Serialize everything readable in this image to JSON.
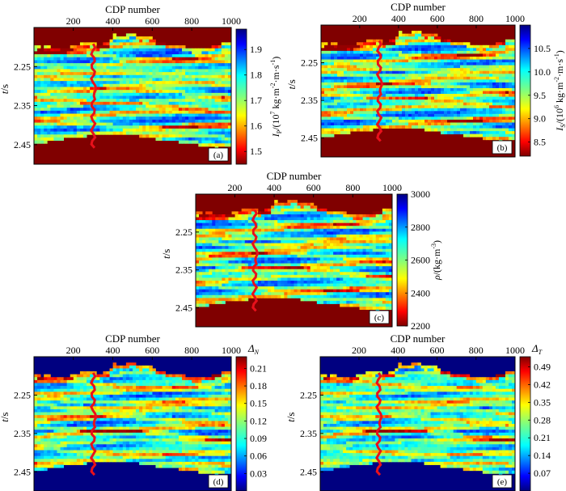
{
  "chart_data": [
    {
      "type": "heatmap",
      "panel_label": "(a)",
      "xlabel": "CDP number",
      "ylabel": "t/s",
      "x_ticks": [
        200,
        400,
        600,
        800,
        1000
      ],
      "y_ticks": [
        "2.25",
        "2.35",
        "2.45"
      ],
      "xlim": [
        1,
        1000
      ],
      "ylim": [
        2.15,
        2.5
      ],
      "colorbar": {
        "label": "I_P/(10^7 kg·m^-2·m·s^-1)",
        "ticks": [
          "1.9",
          "1.8",
          "1.7",
          "1.6",
          "1.5"
        ],
        "range": [
          1.45,
          1.98
        ],
        "colormap": "jet",
        "reversed": true
      },
      "mask_color": "#800000"
    },
    {
      "type": "heatmap",
      "panel_label": "(b)",
      "xlabel": "CDP number",
      "ylabel": "t/s",
      "x_ticks": [
        200,
        400,
        600,
        800,
        1000
      ],
      "y_ticks": [
        "2.25",
        "2.35",
        "2.45"
      ],
      "xlim": [
        1,
        1000
      ],
      "ylim": [
        2.15,
        2.5
      ],
      "colorbar": {
        "label": "I_S/(10^6 kg·m^-2·m·s^-1)",
        "ticks": [
          "10.5",
          "10.0",
          "9.5",
          "9.0",
          "8.5"
        ],
        "range": [
          8.2,
          11.0
        ],
        "colormap": "jet",
        "reversed": true
      },
      "mask_color": "#800000"
    },
    {
      "type": "heatmap",
      "panel_label": "(c)",
      "xlabel": "CDP number",
      "ylabel": "t/s",
      "x_ticks": [
        200,
        400,
        600,
        800,
        1000
      ],
      "y_ticks": [
        "2.25",
        "2.35",
        "2.45"
      ],
      "xlim": [
        1,
        1000
      ],
      "ylim": [
        2.15,
        2.5
      ],
      "colorbar": {
        "label": "ρ/(kg·m^-3)",
        "ticks": [
          "3000",
          "2800",
          "2600",
          "2400",
          "2200"
        ],
        "range": [
          2200,
          3000
        ],
        "colormap": "jet",
        "reversed": true
      },
      "mask_color": "#800000"
    },
    {
      "type": "heatmap",
      "panel_label": "(d)",
      "xlabel": "CDP number",
      "ylabel": "t/s",
      "x_ticks": [
        200,
        400,
        600,
        800,
        1000
      ],
      "y_ticks": [
        "2.25",
        "2.35",
        "2.45"
      ],
      "xlim": [
        1,
        1000
      ],
      "ylim": [
        2.15,
        2.5
      ],
      "colorbar": {
        "label": "Δ_N",
        "ticks": [
          "0.21",
          "0.18",
          "0.15",
          "0.12",
          "0.09",
          "0.06",
          "0.03"
        ],
        "range": [
          0.0,
          0.23
        ],
        "colormap": "jet",
        "reversed": false
      },
      "mask_color": "#000080"
    },
    {
      "type": "heatmap",
      "panel_label": "(e)",
      "xlabel": "CDP number",
      "ylabel": "t/s",
      "x_ticks": [
        200,
        400,
        600,
        800,
        1000
      ],
      "y_ticks": [
        "2.25",
        "2.35",
        "2.45"
      ],
      "xlim": [
        1,
        1000
      ],
      "ylim": [
        2.15,
        2.5
      ],
      "colorbar": {
        "label": "Δ_T",
        "ticks": [
          "0.49",
          "0.42",
          "0.35",
          "0.28",
          "0.21",
          "0.14",
          "0.07"
        ],
        "range": [
          0.0,
          0.53
        ],
        "colormap": "jet",
        "reversed": false
      },
      "mask_color": "#000080"
    }
  ]
}
